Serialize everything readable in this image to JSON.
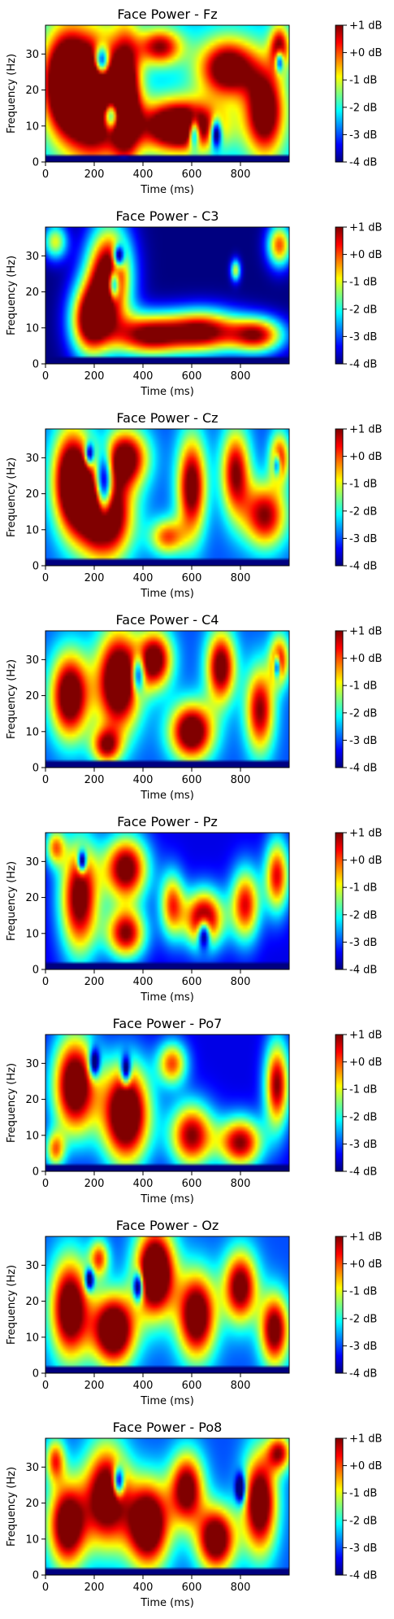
{
  "figure": {
    "colorbar": {
      "ticks": [
        1,
        0,
        -1,
        -2,
        -3,
        -4
      ],
      "tick_labels": [
        "+1 dB",
        "+0 dB",
        "-1 dB",
        "-2 dB",
        "-3 dB",
        "-4 dB"
      ],
      "range": [
        -4,
        1
      ],
      "colormap": "jet",
      "stops": [
        "#00007f",
        "#0000ff",
        "#007fff",
        "#00ffff",
        "#7fff7f",
        "#ffff00",
        "#ff7f00",
        "#ff0000",
        "#7f0000"
      ]
    }
  },
  "chart_data": [
    {
      "type": "heatmap",
      "title": "Face Power - Fz",
      "xlabel": "Time (ms)",
      "ylabel": "Frequency (Hz)",
      "xlim": [
        0,
        1000
      ],
      "ylim": [
        0,
        38
      ],
      "xticks": [
        0,
        200,
        400,
        600,
        800
      ],
      "yticks": [
        0,
        10,
        20,
        30
      ],
      "value_range_db": [
        -4,
        1
      ],
      "mean_power_db": 0.0,
      "blobs": [
        {
          "t": 80,
          "f": 22,
          "rt": 90,
          "rf": 14,
          "a": 5.5
        },
        {
          "t": 200,
          "f": 18,
          "rt": 110,
          "rf": 16,
          "a": 6
        },
        {
          "t": 330,
          "f": 18,
          "rt": 60,
          "rf": 18,
          "a": 4.5
        },
        {
          "t": 470,
          "f": 32,
          "rt": 90,
          "rf": 5,
          "a": 3.5
        },
        {
          "t": 550,
          "f": 10,
          "rt": 170,
          "rf": 7,
          "a": 5.5
        },
        {
          "t": 750,
          "f": 26,
          "rt": 120,
          "rf": 8,
          "a": 4.5
        },
        {
          "t": 900,
          "f": 14,
          "rt": 80,
          "rf": 12,
          "a": 4.5
        },
        {
          "t": 960,
          "f": 32,
          "rt": 40,
          "rf": 6,
          "a": 3.5
        },
        {
          "t": 230,
          "f": 28,
          "rt": 30,
          "rf": 4,
          "a": -4.5
        },
        {
          "t": 270,
          "f": 13,
          "rt": 35,
          "rf": 4,
          "a": -4.5
        },
        {
          "t": 610,
          "f": 8,
          "rt": 22,
          "rf": 4,
          "a": -4
        },
        {
          "t": 700,
          "f": 8,
          "rt": 22,
          "rf": 4,
          "a": -4
        },
        {
          "t": 960,
          "f": 28,
          "rt": 16,
          "rf": 3,
          "a": -3.5
        }
      ]
    },
    {
      "type": "heatmap",
      "title": "Face Power - C3",
      "xlabel": "Time (ms)",
      "ylabel": "Frequency (Hz)",
      "xlim": [
        0,
        1000
      ],
      "ylim": [
        0,
        38
      ],
      "xticks": [
        0,
        200,
        400,
        600,
        800
      ],
      "yticks": [
        0,
        10,
        20,
        30
      ],
      "value_range_db": [
        -4,
        1
      ],
      "mean_power_db": -1.5,
      "blobs": [
        {
          "t": 260,
          "f": 24,
          "rt": 90,
          "rf": 14,
          "a": 6
        },
        {
          "t": 180,
          "f": 12,
          "rt": 80,
          "rf": 10,
          "a": 5
        },
        {
          "t": 420,
          "f": 8,
          "rt": 150,
          "rf": 6,
          "a": 5
        },
        {
          "t": 650,
          "f": 9,
          "rt": 150,
          "rf": 6,
          "a": 5
        },
        {
          "t": 870,
          "f": 8,
          "rt": 110,
          "rf": 5,
          "a": 4.5
        },
        {
          "t": 960,
          "f": 33,
          "rt": 50,
          "rf": 6,
          "a": 4
        },
        {
          "t": 40,
          "f": 34,
          "rt": 50,
          "rf": 5,
          "a": 3
        },
        {
          "t": 780,
          "f": 26,
          "rt": 20,
          "rf": 3,
          "a": 3
        },
        {
          "t": 300,
          "f": 30,
          "rt": 22,
          "rf": 3,
          "a": -4
        },
        {
          "t": 280,
          "f": 22,
          "rt": 22,
          "rf": 4,
          "a": -4
        }
      ]
    },
    {
      "type": "heatmap",
      "title": "Face Power - Cz",
      "xlabel": "Time (ms)",
      "ylabel": "Frequency (Hz)",
      "xlim": [
        0,
        1000
      ],
      "ylim": [
        0,
        38
      ],
      "xticks": [
        0,
        200,
        400,
        600,
        800
      ],
      "yticks": [
        0,
        10,
        20,
        30
      ],
      "value_range_db": [
        -4,
        1
      ],
      "mean_power_db": -0.5,
      "blobs": [
        {
          "t": 110,
          "f": 24,
          "rt": 80,
          "rf": 14,
          "a": 5.5
        },
        {
          "t": 240,
          "f": 14,
          "rt": 110,
          "rf": 12,
          "a": 6
        },
        {
          "t": 330,
          "f": 30,
          "rt": 90,
          "rf": 8,
          "a": 4.5
        },
        {
          "t": 600,
          "f": 22,
          "rt": 60,
          "rf": 14,
          "a": 4.5
        },
        {
          "t": 780,
          "f": 26,
          "rt": 60,
          "rf": 12,
          "a": 4
        },
        {
          "t": 900,
          "f": 14,
          "rt": 90,
          "rf": 9,
          "a": 4
        },
        {
          "t": 960,
          "f": 30,
          "rt": 40,
          "rf": 7,
          "a": 3.5
        },
        {
          "t": 500,
          "f": 8,
          "rt": 70,
          "rf": 5,
          "a": 3
        },
        {
          "t": 240,
          "f": 22,
          "rt": 35,
          "rf": 9,
          "a": -5
        },
        {
          "t": 180,
          "f": 31,
          "rt": 18,
          "rf": 3,
          "a": -3.5
        },
        {
          "t": 950,
          "f": 28,
          "rt": 14,
          "rf": 3,
          "a": -3
        }
      ]
    },
    {
      "type": "heatmap",
      "title": "Face Power - C4",
      "xlabel": "Time (ms)",
      "ylabel": "Frequency (Hz)",
      "xlim": [
        0,
        1000
      ],
      "ylim": [
        0,
        38
      ],
      "xticks": [
        0,
        200,
        400,
        600,
        800
      ],
      "yticks": [
        0,
        10,
        20,
        30
      ],
      "value_range_db": [
        -4,
        1
      ],
      "mean_power_db": -0.5,
      "blobs": [
        {
          "t": 100,
          "f": 20,
          "rt": 80,
          "rf": 12,
          "a": 5
        },
        {
          "t": 300,
          "f": 24,
          "rt": 90,
          "rf": 14,
          "a": 5.5
        },
        {
          "t": 450,
          "f": 30,
          "rt": 70,
          "rf": 8,
          "a": 4.5
        },
        {
          "t": 600,
          "f": 10,
          "rt": 90,
          "rf": 8,
          "a": 5
        },
        {
          "t": 720,
          "f": 28,
          "rt": 60,
          "rf": 10,
          "a": 4.5
        },
        {
          "t": 880,
          "f": 16,
          "rt": 60,
          "rf": 12,
          "a": 4
        },
        {
          "t": 960,
          "f": 30,
          "rt": 40,
          "rf": 7,
          "a": 3.5
        },
        {
          "t": 250,
          "f": 6,
          "rt": 60,
          "rf": 5,
          "a": 3.5
        },
        {
          "t": 950,
          "f": 28,
          "rt": 12,
          "rf": 3,
          "a": -3.5
        },
        {
          "t": 380,
          "f": 26,
          "rt": 25,
          "rf": 5,
          "a": -3.5
        }
      ]
    },
    {
      "type": "heatmap",
      "title": "Face Power - Pz",
      "xlabel": "Time (ms)",
      "ylabel": "Frequency (Hz)",
      "xlim": [
        0,
        1000
      ],
      "ylim": [
        0,
        38
      ],
      "xticks": [
        0,
        200,
        400,
        600,
        800
      ],
      "yticks": [
        0,
        10,
        20,
        30
      ],
      "value_range_db": [
        -4,
        1
      ],
      "mean_power_db": -1.0,
      "blobs": [
        {
          "t": 140,
          "f": 20,
          "rt": 80,
          "rf": 16,
          "a": 5
        },
        {
          "t": 330,
          "f": 28,
          "rt": 90,
          "rf": 9,
          "a": 5
        },
        {
          "t": 330,
          "f": 10,
          "rt": 80,
          "rf": 7,
          "a": 4.5
        },
        {
          "t": 520,
          "f": 18,
          "rt": 50,
          "rf": 9,
          "a": 3.5
        },
        {
          "t": 650,
          "f": 14,
          "rt": 80,
          "rf": 8,
          "a": 5
        },
        {
          "t": 820,
          "f": 18,
          "rt": 60,
          "rf": 10,
          "a": 4
        },
        {
          "t": 950,
          "f": 26,
          "rt": 50,
          "rf": 10,
          "a": 4
        },
        {
          "t": 40,
          "f": 34,
          "rt": 40,
          "rf": 5,
          "a": 3
        },
        {
          "t": 150,
          "f": 30,
          "rt": 18,
          "rf": 3,
          "a": -4
        },
        {
          "t": 650,
          "f": 10,
          "rt": 25,
          "rf": 4,
          "a": -4
        }
      ]
    },
    {
      "type": "heatmap",
      "title": "Face Power - Po7",
      "xlabel": "Time (ms)",
      "ylabel": "Frequency (Hz)",
      "xlim": [
        0,
        1000
      ],
      "ylim": [
        0,
        38
      ],
      "xticks": [
        0,
        200,
        400,
        600,
        800
      ],
      "yticks": [
        0,
        10,
        20,
        30
      ],
      "value_range_db": [
        -4,
        1
      ],
      "mean_power_db": -1.0,
      "blobs": [
        {
          "t": 120,
          "f": 24,
          "rt": 90,
          "rf": 14,
          "a": 5.5
        },
        {
          "t": 330,
          "f": 16,
          "rt": 100,
          "rf": 14,
          "a": 6
        },
        {
          "t": 600,
          "f": 10,
          "rt": 90,
          "rf": 9,
          "a": 4.5
        },
        {
          "t": 800,
          "f": 8,
          "rt": 90,
          "rf": 7,
          "a": 4.5
        },
        {
          "t": 950,
          "f": 24,
          "rt": 50,
          "rf": 12,
          "a": 4.5
        },
        {
          "t": 520,
          "f": 30,
          "rt": 60,
          "rf": 6,
          "a": 3.5
        },
        {
          "t": 40,
          "f": 6,
          "rt": 40,
          "rf": 5,
          "a": 3
        },
        {
          "t": 200,
          "f": 30,
          "rt": 22,
          "rf": 4,
          "a": -3.5
        },
        {
          "t": 330,
          "f": 28,
          "rt": 20,
          "rf": 4,
          "a": -3.5
        }
      ]
    },
    {
      "type": "heatmap",
      "title": "Face Power - Oz",
      "xlabel": "Time (ms)",
      "ylabel": "Frequency (Hz)",
      "xlim": [
        0,
        1000
      ],
      "ylim": [
        0,
        38
      ],
      "xticks": [
        0,
        200,
        400,
        600,
        800
      ],
      "yticks": [
        0,
        10,
        20,
        30
      ],
      "value_range_db": [
        -4,
        1
      ],
      "mean_power_db": -0.5,
      "blobs": [
        {
          "t": 100,
          "f": 18,
          "rt": 80,
          "rf": 14,
          "a": 5
        },
        {
          "t": 280,
          "f": 12,
          "rt": 90,
          "rf": 10,
          "a": 5.5
        },
        {
          "t": 450,
          "f": 28,
          "rt": 80,
          "rf": 12,
          "a": 6
        },
        {
          "t": 620,
          "f": 16,
          "rt": 80,
          "rf": 12,
          "a": 5
        },
        {
          "t": 800,
          "f": 24,
          "rt": 70,
          "rf": 10,
          "a": 4.5
        },
        {
          "t": 940,
          "f": 12,
          "rt": 60,
          "rf": 10,
          "a": 4.5
        },
        {
          "t": 220,
          "f": 32,
          "rt": 40,
          "rf": 5,
          "a": 3
        },
        {
          "t": 380,
          "f": 24,
          "rt": 20,
          "rf": 4,
          "a": -4
        },
        {
          "t": 180,
          "f": 26,
          "rt": 18,
          "rf": 3,
          "a": -3.5
        }
      ]
    },
    {
      "type": "heatmap",
      "title": "Face Power - Po8",
      "xlabel": "Time (ms)",
      "ylabel": "Frequency (Hz)",
      "xlim": [
        0,
        1000
      ],
      "ylim": [
        0,
        38
      ],
      "xticks": [
        0,
        200,
        400,
        600,
        800
      ],
      "yticks": [
        0,
        10,
        20,
        30
      ],
      "value_range_db": [
        -4,
        1
      ],
      "mean_power_db": -0.5,
      "blobs": [
        {
          "t": 90,
          "f": 14,
          "rt": 80,
          "rf": 12,
          "a": 5
        },
        {
          "t": 250,
          "f": 22,
          "rt": 90,
          "rf": 14,
          "a": 5
        },
        {
          "t": 420,
          "f": 14,
          "rt": 90,
          "rf": 12,
          "a": 5.5
        },
        {
          "t": 580,
          "f": 24,
          "rt": 70,
          "rf": 10,
          "a": 4.5
        },
        {
          "t": 700,
          "f": 10,
          "rt": 80,
          "rf": 9,
          "a": 5
        },
        {
          "t": 880,
          "f": 20,
          "rt": 70,
          "rf": 14,
          "a": 5
        },
        {
          "t": 960,
          "f": 34,
          "rt": 50,
          "rf": 5,
          "a": 3.5
        },
        {
          "t": 40,
          "f": 32,
          "rt": 40,
          "rf": 6,
          "a": 3
        },
        {
          "t": 300,
          "f": 26,
          "rt": 22,
          "rf": 4,
          "a": -4
        },
        {
          "t": 800,
          "f": 24,
          "rt": 20,
          "rf": 4,
          "a": -3.5
        }
      ]
    }
  ]
}
